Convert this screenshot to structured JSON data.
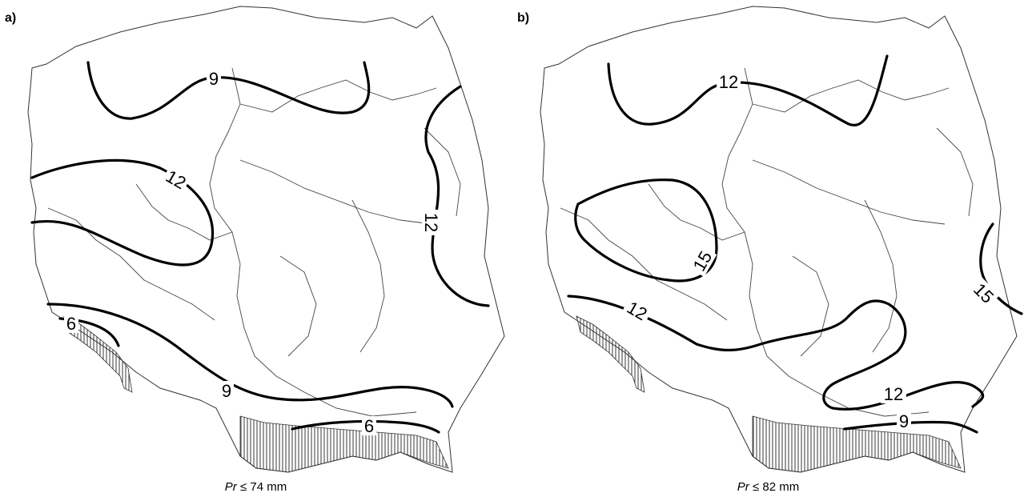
{
  "panels": [
    {
      "label": "a)",
      "caption_symbol": "Pr",
      "caption_rest": " ≤ 74 mm",
      "isolines": [
        "9",
        "12",
        "12",
        "6",
        "9",
        "6"
      ]
    },
    {
      "label": "b)",
      "caption_symbol": "Pr",
      "caption_rest": " ≤ 82 mm",
      "isolines": [
        "12",
        "15",
        "15",
        "12",
        "12",
        "9"
      ]
    }
  ]
}
